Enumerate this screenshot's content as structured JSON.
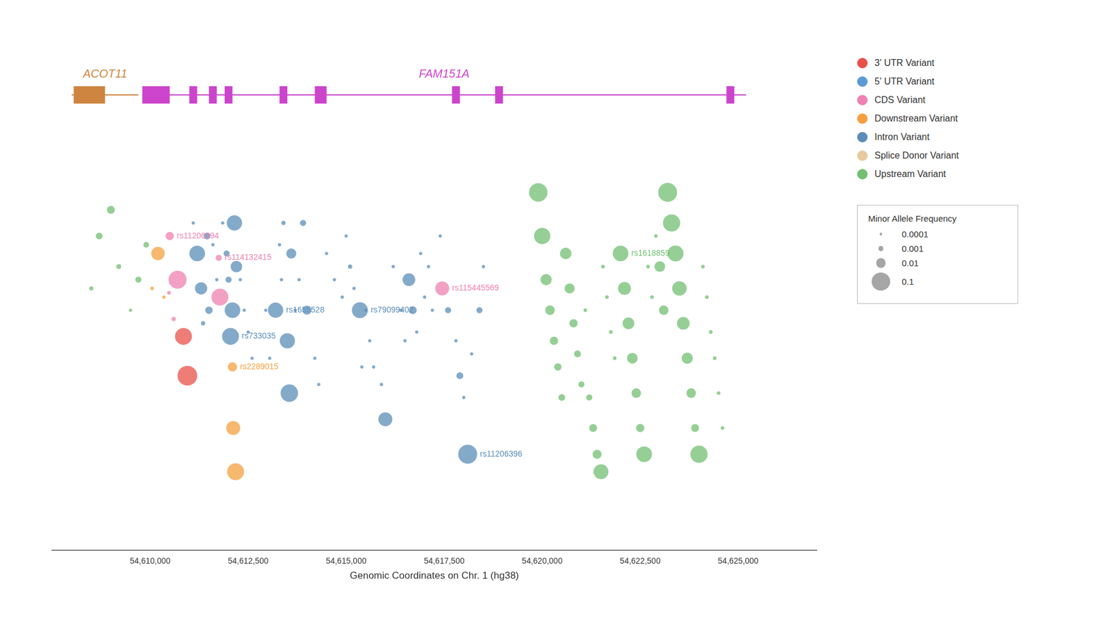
{
  "chart_data": [
    {
      "type": "gene_track",
      "xlim": [
        54607500,
        54627000
      ],
      "tick_labels": false,
      "genes": [
        {
          "name": "ACOT11",
          "color": "#cd853f",
          "start": 54608000,
          "end": 54609700,
          "exons": [
            [
              54608050,
              54608850
            ]
          ]
        },
        {
          "name": "FAM151A",
          "color": "#cc44cc",
          "start": 54609800,
          "end": 54625200,
          "exons": [
            [
              54609800,
              54610500
            ],
            [
              54611000,
              54611200
            ],
            [
              54611500,
              54611700
            ],
            [
              54611900,
              54612100
            ],
            [
              54613300,
              54613500
            ],
            [
              54614200,
              54614500
            ],
            [
              54617700,
              54617900
            ],
            [
              54618800,
              54619000
            ],
            [
              54624700,
              54624900
            ]
          ]
        }
      ]
    },
    {
      "type": "scatter",
      "xlabel": "Genomic Coordinates on Chr. 1 (hg38)",
      "xlim": [
        54607500,
        54627000
      ],
      "xticks": [
        {
          "value": 54610000,
          "label": "54,610,000"
        },
        {
          "value": 54612500,
          "label": "54,612,500"
        },
        {
          "value": 54615000,
          "label": "54,615,000"
        },
        {
          "value": 54617500,
          "label": "54,617,500"
        },
        {
          "value": 54620000,
          "label": "54,620,000"
        },
        {
          "value": 54622500,
          "label": "54,622,500"
        },
        {
          "value": 54625000,
          "label": "54,625,000"
        }
      ],
      "ylim": [
        0,
        0.92
      ],
      "tick_labels": "x",
      "grid": false,
      "legend": "right",
      "series": [
        {
          "name": "3' UTR Variant",
          "color": "#e8524a",
          "values": [
            {
              "x": 54610850,
              "y": 0.49,
              "maf": 0.08
            },
            {
              "x": 54610950,
              "y": 0.4,
              "maf": 0.14
            }
          ]
        },
        {
          "name": "5' UTR Variant",
          "color": "#5b9bd5",
          "values": []
        },
        {
          "name": "CDS Variant",
          "color": "#ee82b0",
          "values": [
            {
              "x": 54610500,
              "y": 0.72,
              "maf": 0.006,
              "label": "rs11206394"
            },
            {
              "x": 54610480,
              "y": 0.59,
              "maf": 0.0003
            },
            {
              "x": 54610600,
              "y": 0.53,
              "maf": 0.0005
            },
            {
              "x": 54610700,
              "y": 0.62,
              "maf": 0.1
            },
            {
              "x": 54611750,
              "y": 0.67,
              "maf": 0.002,
              "label": "rs114132415"
            },
            {
              "x": 54611780,
              "y": 0.58,
              "maf": 0.08
            },
            {
              "x": 54617450,
              "y": 0.6,
              "maf": 0.04,
              "label": "rs115445569"
            }
          ]
        },
        {
          "name": "Downstream Variant",
          "color": "#f4a040",
          "values": [
            {
              "x": 54610050,
              "y": 0.6,
              "maf": 0.0003
            },
            {
              "x": 54610200,
              "y": 0.68,
              "maf": 0.035
            },
            {
              "x": 54610350,
              "y": 0.58,
              "maf": 0.0002
            },
            {
              "x": 54612100,
              "y": 0.42,
              "maf": 0.009,
              "label": "rs2289015"
            },
            {
              "x": 54612120,
              "y": 0.28,
              "maf": 0.04
            },
            {
              "x": 54612180,
              "y": 0.18,
              "maf": 0.08
            }
          ]
        },
        {
          "name": "Intron Variant",
          "color": "#5b8db8",
          "values": [
            {
              "x": 54611100,
              "y": 0.75,
              "maf": 0.0002
            },
            {
              "x": 54611200,
              "y": 0.68,
              "maf": 0.06
            },
            {
              "x": 54611300,
              "y": 0.6,
              "maf": 0.025
            },
            {
              "x": 54611350,
              "y": 0.52,
              "maf": 0.0005
            },
            {
              "x": 54611450,
              "y": 0.72,
              "maf": 0.003
            },
            {
              "x": 54611500,
              "y": 0.55,
              "maf": 0.004
            },
            {
              "x": 54611600,
              "y": 0.7,
              "maf": 0.0002
            },
            {
              "x": 54611700,
              "y": 0.62,
              "maf": 0.0002
            },
            {
              "x": 54611850,
              "y": 0.75,
              "maf": 0.0002
            },
            {
              "x": 54611950,
              "y": 0.68,
              "maf": 0.002
            },
            {
              "x": 54612000,
              "y": 0.62,
              "maf": 0.002
            },
            {
              "x": 54612100,
              "y": 0.55,
              "maf": 0.06
            },
            {
              "x": 54612150,
              "y": 0.75,
              "maf": 0.055
            },
            {
              "x": 54612200,
              "y": 0.65,
              "maf": 0.02
            },
            {
              "x": 54612050,
              "y": 0.49,
              "maf": 0.08,
              "label": "rs733035"
            },
            {
              "x": 54612300,
              "y": 0.62,
              "maf": 0.0002
            },
            {
              "x": 54612400,
              "y": 0.55,
              "maf": 0.0002
            },
            {
              "x": 54612500,
              "y": 0.5,
              "maf": 0.0002
            },
            {
              "x": 54612600,
              "y": 0.44,
              "maf": 0.0002
            },
            {
              "x": 54612950,
              "y": 0.55,
              "maf": 0.0002
            },
            {
              "x": 54613050,
              "y": 0.44,
              "maf": 0.0002
            },
            {
              "x": 54613200,
              "y": 0.55,
              "maf": 0.055,
              "label": "rs1655528"
            },
            {
              "x": 54613300,
              "y": 0.7,
              "maf": 0.0002
            },
            {
              "x": 54613350,
              "y": 0.62,
              "maf": 0.0002
            },
            {
              "x": 54613400,
              "y": 0.75,
              "maf": 0.0005
            },
            {
              "x": 54613500,
              "y": 0.48,
              "maf": 0.055
            },
            {
              "x": 54613550,
              "y": 0.36,
              "maf": 0.09
            },
            {
              "x": 54613600,
              "y": 0.68,
              "maf": 0.012
            },
            {
              "x": 54613700,
              "y": 0.55,
              "maf": 0.0002
            },
            {
              "x": 54613800,
              "y": 0.62,
              "maf": 0.0002
            },
            {
              "x": 54613900,
              "y": 0.75,
              "maf": 0.002
            },
            {
              "x": 54614000,
              "y": 0.55,
              "maf": 0.008
            },
            {
              "x": 54614200,
              "y": 0.44,
              "maf": 0.0002
            },
            {
              "x": 54614300,
              "y": 0.38,
              "maf": 0.0002
            },
            {
              "x": 54614500,
              "y": 0.68,
              "maf": 0.0002
            },
            {
              "x": 54614700,
              "y": 0.62,
              "maf": 0.0002
            },
            {
              "x": 54614900,
              "y": 0.58,
              "maf": 0.0002
            },
            {
              "x": 54615000,
              "y": 0.72,
              "maf": 0.0002
            },
            {
              "x": 54615100,
              "y": 0.65,
              "maf": 0.0005
            },
            {
              "x": 54615200,
              "y": 0.6,
              "maf": 0.0002
            },
            {
              "x": 54615350,
              "y": 0.55,
              "maf": 0.065,
              "label": "rs79099402"
            },
            {
              "x": 54615400,
              "y": 0.42,
              "maf": 0.0002
            },
            {
              "x": 54615500,
              "y": 0.55,
              "maf": 0.0002
            },
            {
              "x": 54615600,
              "y": 0.48,
              "maf": 0.0002
            },
            {
              "x": 54615700,
              "y": 0.42,
              "maf": 0.0002
            },
            {
              "x": 54615900,
              "y": 0.38,
              "maf": 0.0002
            },
            {
              "x": 54616000,
              "y": 0.3,
              "maf": 0.04
            },
            {
              "x": 54616200,
              "y": 0.65,
              "maf": 0.0002
            },
            {
              "x": 54616400,
              "y": 0.55,
              "maf": 0.0002
            },
            {
              "x": 54616500,
              "y": 0.48,
              "maf": 0.0002
            },
            {
              "x": 54616600,
              "y": 0.62,
              "maf": 0.028
            },
            {
              "x": 54616700,
              "y": 0.55,
              "maf": 0.005
            },
            {
              "x": 54616800,
              "y": 0.5,
              "maf": 0.0002
            },
            {
              "x": 54616900,
              "y": 0.68,
              "maf": 0.0002
            },
            {
              "x": 54617000,
              "y": 0.58,
              "maf": 0.0002
            },
            {
              "x": 54617100,
              "y": 0.65,
              "maf": 0.0002
            },
            {
              "x": 54617200,
              "y": 0.55,
              "maf": 0.0002
            },
            {
              "x": 54617400,
              "y": 0.72,
              "maf": 0.0002
            },
            {
              "x": 54617600,
              "y": 0.55,
              "maf": 0.002
            },
            {
              "x": 54617800,
              "y": 0.48,
              "maf": 0.0002
            },
            {
              "x": 54617900,
              "y": 0.4,
              "maf": 0.003
            },
            {
              "x": 54618000,
              "y": 0.35,
              "maf": 0.0002
            },
            {
              "x": 54618100,
              "y": 0.22,
              "maf": 0.12,
              "label": "rs11206396"
            },
            {
              "x": 54618200,
              "y": 0.45,
              "maf": 0.0002
            },
            {
              "x": 54618400,
              "y": 0.55,
              "maf": 0.002
            },
            {
              "x": 54618500,
              "y": 0.65,
              "maf": 0.0002
            }
          ]
        },
        {
          "name": "Splice Donor Variant",
          "color": "#e8c9a0",
          "values": []
        },
        {
          "name": "Upstream Variant",
          "color": "#72bf72",
          "values": [
            {
              "x": 54608500,
              "y": 0.6,
              "maf": 0.0005
            },
            {
              "x": 54608700,
              "y": 0.72,
              "maf": 0.003
            },
            {
              "x": 54609000,
              "y": 0.78,
              "maf": 0.005
            },
            {
              "x": 54609200,
              "y": 0.65,
              "maf": 0.0008
            },
            {
              "x": 54609500,
              "y": 0.55,
              "maf": 0.0002
            },
            {
              "x": 54609700,
              "y": 0.62,
              "maf": 0.002
            },
            {
              "x": 54609900,
              "y": 0.7,
              "maf": 0.0015
            },
            {
              "x": 54619900,
              "y": 0.82,
              "maf": 0.11
            },
            {
              "x": 54620000,
              "y": 0.72,
              "maf": 0.07
            },
            {
              "x": 54620100,
              "y": 0.62,
              "maf": 0.018
            },
            {
              "x": 54620200,
              "y": 0.55,
              "maf": 0.01
            },
            {
              "x": 54620300,
              "y": 0.48,
              "maf": 0.006
            },
            {
              "x": 54620400,
              "y": 0.42,
              "maf": 0.004
            },
            {
              "x": 54620500,
              "y": 0.35,
              "maf": 0.003
            },
            {
              "x": 54620600,
              "y": 0.68,
              "maf": 0.02
            },
            {
              "x": 54620700,
              "y": 0.6,
              "maf": 0.012
            },
            {
              "x": 54620800,
              "y": 0.52,
              "maf": 0.006
            },
            {
              "x": 54620900,
              "y": 0.45,
              "maf": 0.003
            },
            {
              "x": 54621000,
              "y": 0.38,
              "maf": 0.002
            },
            {
              "x": 54621100,
              "y": 0.55,
              "maf": 0.0003
            },
            {
              "x": 54621200,
              "y": 0.35,
              "maf": 0.002
            },
            {
              "x": 54621300,
              "y": 0.28,
              "maf": 0.005
            },
            {
              "x": 54621400,
              "y": 0.22,
              "maf": 0.008
            },
            {
              "x": 54621500,
              "y": 0.18,
              "maf": 0.05
            },
            {
              "x": 54621550,
              "y": 0.65,
              "maf": 0.0003
            },
            {
              "x": 54621650,
              "y": 0.58,
              "maf": 0.0003
            },
            {
              "x": 54621750,
              "y": 0.5,
              "maf": 0.0003
            },
            {
              "x": 54621850,
              "y": 0.44,
              "maf": 0.0003
            },
            {
              "x": 54622000,
              "y": 0.68,
              "maf": 0.06,
              "label": "rs1618859"
            },
            {
              "x": 54622100,
              "y": 0.6,
              "maf": 0.03
            },
            {
              "x": 54622200,
              "y": 0.52,
              "maf": 0.022
            },
            {
              "x": 54622300,
              "y": 0.44,
              "maf": 0.015
            },
            {
              "x": 54622400,
              "y": 0.36,
              "maf": 0.01
            },
            {
              "x": 54622500,
              "y": 0.28,
              "maf": 0.006
            },
            {
              "x": 54622600,
              "y": 0.22,
              "maf": 0.06
            },
            {
              "x": 54622700,
              "y": 0.65,
              "maf": 0.0003
            },
            {
              "x": 54622800,
              "y": 0.58,
              "maf": 0.0003
            },
            {
              "x": 54622900,
              "y": 0.72,
              "maf": 0.0003
            },
            {
              "x": 54623000,
              "y": 0.65,
              "maf": 0.015
            },
            {
              "x": 54623100,
              "y": 0.55,
              "maf": 0.01
            },
            {
              "x": 54623200,
              "y": 0.82,
              "maf": 0.12
            },
            {
              "x": 54623300,
              "y": 0.75,
              "maf": 0.085
            },
            {
              "x": 54623400,
              "y": 0.68,
              "maf": 0.065
            },
            {
              "x": 54623500,
              "y": 0.6,
              "maf": 0.045
            },
            {
              "x": 54623600,
              "y": 0.52,
              "maf": 0.028
            },
            {
              "x": 54623700,
              "y": 0.44,
              "maf": 0.018
            },
            {
              "x": 54623800,
              "y": 0.36,
              "maf": 0.01
            },
            {
              "x": 54623900,
              "y": 0.28,
              "maf": 0.005
            },
            {
              "x": 54624000,
              "y": 0.22,
              "maf": 0.085
            },
            {
              "x": 54624100,
              "y": 0.65,
              "maf": 0.0003
            },
            {
              "x": 54624200,
              "y": 0.58,
              "maf": 0.0003
            },
            {
              "x": 54624300,
              "y": 0.5,
              "maf": 0.0003
            },
            {
              "x": 54624400,
              "y": 0.44,
              "maf": 0.0003
            },
            {
              "x": 54624500,
              "y": 0.36,
              "maf": 0.0003
            },
            {
              "x": 54624600,
              "y": 0.28,
              "maf": 0.0003
            }
          ]
        }
      ],
      "size_legend": {
        "title": "Minor Allele Frequency",
        "values": [
          0.0001,
          0.001,
          0.01,
          0.1
        ]
      }
    }
  ]
}
